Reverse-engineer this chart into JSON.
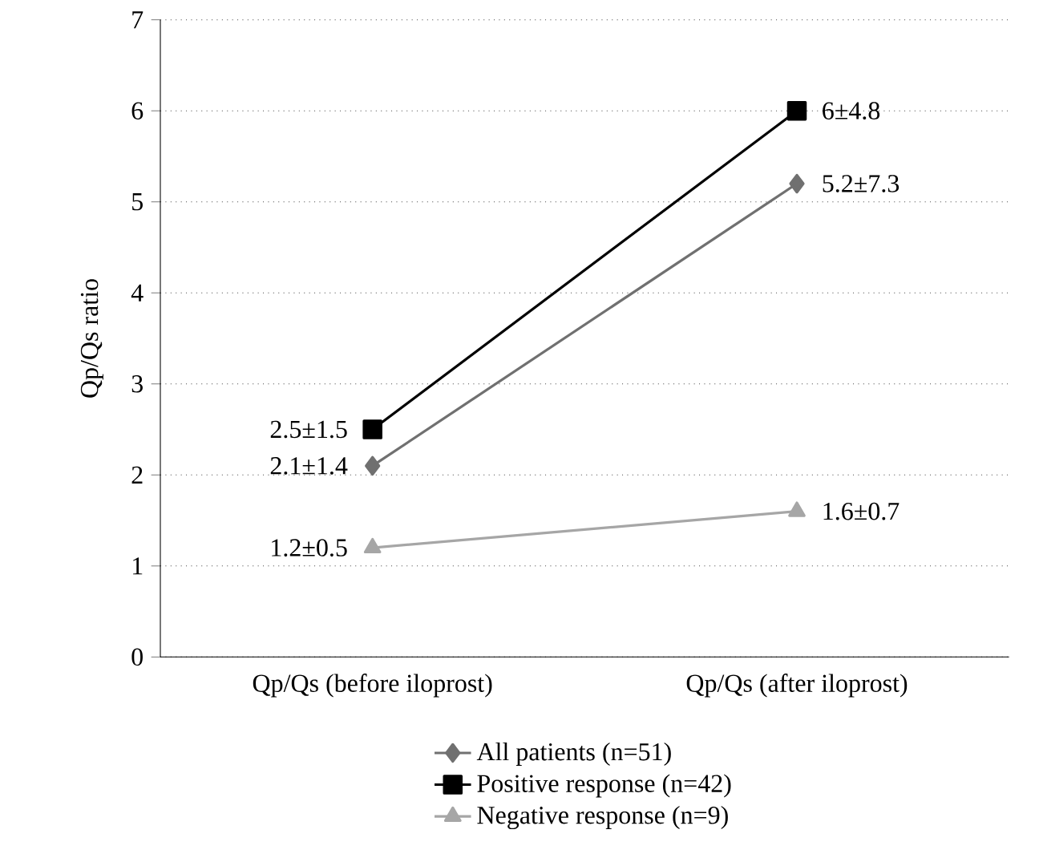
{
  "chart_data": {
    "type": "line",
    "ylabel": "Qp/Qs ratio",
    "categories": [
      "Qp/Qs (before iloprost)",
      "Qp/Qs (after iloprost)"
    ],
    "ylim": [
      0,
      7
    ],
    "yticks": [
      0,
      1,
      2,
      3,
      4,
      5,
      6,
      7
    ],
    "grid": "y",
    "legend": "bottom",
    "line_style": "solid",
    "series": [
      {
        "name": "All patients (n=51)",
        "color": "#707070",
        "marker": "diamond",
        "values": [
          2.1,
          5.2
        ],
        "value_labels": [
          "2.1±1.4",
          "5.2±7.3"
        ]
      },
      {
        "name": "Positive response (n=42)",
        "color": "#000000",
        "marker": "square",
        "values": [
          2.5,
          6
        ],
        "value_labels": [
          "2.5±1.5",
          "6±4.8"
        ]
      },
      {
        "name": "Negative response (n=9)",
        "color": "#a6a6a6",
        "marker": "triangle",
        "values": [
          1.2,
          1.6
        ],
        "value_labels": [
          "1.2±0.5",
          "1.6±0.7"
        ]
      }
    ]
  }
}
